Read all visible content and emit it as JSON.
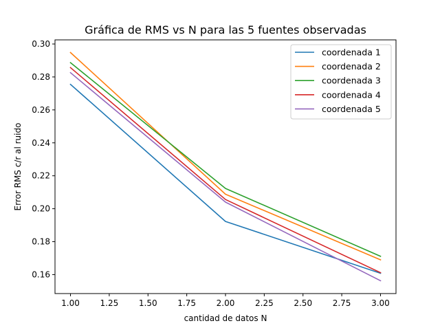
{
  "chart_data": {
    "type": "line",
    "title": "Gráfica de RMS vs N para las 5 fuentes observadas",
    "xlabel": "cantidad de datos N",
    "ylabel": "Error RMS c/r al ruido",
    "xlim": [
      0.9,
      3.1
    ],
    "ylim": [
      0.1485,
      0.3025
    ],
    "xticks": [
      1.0,
      1.25,
      1.5,
      1.75,
      2.0,
      2.25,
      2.5,
      2.75,
      3.0
    ],
    "xtick_labels": [
      "1.00",
      "1.25",
      "1.50",
      "1.75",
      "2.00",
      "2.25",
      "2.50",
      "2.75",
      "3.00"
    ],
    "yticks": [
      0.16,
      0.18,
      0.2,
      0.22,
      0.24,
      0.26,
      0.28,
      0.3
    ],
    "ytick_labels": [
      "0.16",
      "0.18",
      "0.20",
      "0.22",
      "0.24",
      "0.26",
      "0.28",
      "0.30"
    ],
    "x": [
      1,
      2,
      3
    ],
    "legend_position": "top-right",
    "grid": false,
    "series": [
      {
        "name": "coordenada 1",
        "color": "#1f77b4",
        "values": [
          0.2755,
          0.1923,
          0.1608
        ]
      },
      {
        "name": "coordenada 2",
        "color": "#ff7f0e",
        "values": [
          0.2948,
          0.2088,
          0.169
        ]
      },
      {
        "name": "coordenada 3",
        "color": "#2ca02c",
        "values": [
          0.2887,
          0.2123,
          0.1711
        ]
      },
      {
        "name": "coordenada 4",
        "color": "#d62728",
        "values": [
          0.2857,
          0.2056,
          0.1612
        ]
      },
      {
        "name": "coordenada 5",
        "color": "#9467bd",
        "values": [
          0.2826,
          0.204,
          0.1563
        ]
      }
    ]
  }
}
